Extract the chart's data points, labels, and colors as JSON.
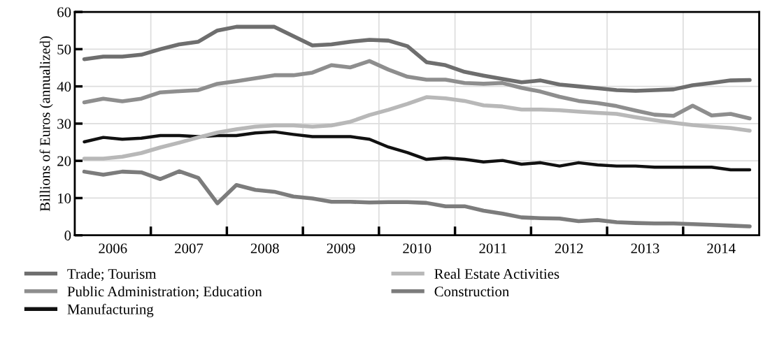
{
  "chart_data": {
    "type": "line",
    "ylabel": "Billions of Euros (annualized)",
    "x": [
      2006.125,
      2006.375,
      2006.625,
      2006.875,
      2007.125,
      2007.375,
      2007.625,
      2007.875,
      2008.125,
      2008.375,
      2008.625,
      2008.875,
      2009.125,
      2009.375,
      2009.625,
      2009.875,
      2010.125,
      2010.375,
      2010.625,
      2010.875,
      2011.125,
      2011.375,
      2011.625,
      2011.875,
      2012.125,
      2012.375,
      2012.625,
      2012.875,
      2013.125,
      2013.375,
      2013.625,
      2013.875,
      2014.125,
      2014.375,
      2014.625,
      2014.875
    ],
    "series": [
      {
        "name": "Trade; Tourism",
        "color": "#6e6e6e",
        "values": [
          47.3,
          48,
          48,
          48.5,
          50,
          51.3,
          52,
          55,
          56,
          56,
          56,
          53.5,
          51,
          51.3,
          52,
          52.5,
          52.3,
          50.8,
          46.5,
          45.7,
          43.9,
          42.9,
          42,
          41.1,
          41.6,
          40.5,
          40,
          39.5,
          39,
          38.8,
          39,
          39.2,
          40.3,
          40.9,
          41.6,
          41.7
        ]
      },
      {
        "name": "Public Administration; Education",
        "color": "#8e8e8e",
        "values": [
          35.7,
          36.7,
          36,
          36.7,
          38.4,
          38.7,
          39,
          40.7,
          41.4,
          42.2,
          43,
          43,
          43.7,
          45.7,
          45.1,
          46.8,
          44.5,
          42.6,
          41.8,
          41.8,
          40.9,
          40.7,
          40.9,
          39.6,
          38.6,
          37.2,
          36.1,
          35.5,
          34.7,
          33.5,
          32.4,
          32.1,
          34.8,
          32.2,
          32.6,
          31.4
        ]
      },
      {
        "name": "Manufacturing",
        "color": "#111111",
        "values": [
          25.1,
          26.3,
          25.8,
          26.1,
          26.8,
          26.8,
          26.5,
          26.8,
          26.8,
          27.5,
          27.8,
          27.1,
          26.5,
          26.5,
          26.5,
          25.8,
          23.7,
          22.2,
          20.4,
          20.8,
          20.4,
          19.7,
          20.1,
          19.1,
          19.5,
          18.6,
          19.5,
          18.9,
          18.6,
          18.6,
          18.3,
          18.3,
          18.3,
          18.3,
          17.6,
          17.6
        ]
      },
      {
        "name": "Real Estate Activities",
        "color": "#b8b8b8",
        "values": [
          20.6,
          20.6,
          21.1,
          22.1,
          23.6,
          24.9,
          26.3,
          27.6,
          28.5,
          29.2,
          29.5,
          29.5,
          29.2,
          29.5,
          30.5,
          32.3,
          33.7,
          35.3,
          37.1,
          36.8,
          36.1,
          34.9,
          34.6,
          33.8,
          33.8,
          33.6,
          33.2,
          32.9,
          32.6,
          31.7,
          30.9,
          30.2,
          29.6,
          29.2,
          28.8,
          28.1
        ]
      },
      {
        "name": "Construction",
        "color": "#7c7c7c",
        "values": [
          17.1,
          16.3,
          17.1,
          16.9,
          15.1,
          17.2,
          15.4,
          8.6,
          13.5,
          12.2,
          11.7,
          10.4,
          9.9,
          9,
          9,
          8.8,
          8.9,
          8.9,
          8.7,
          7.8,
          7.8,
          6.6,
          5.8,
          4.8,
          4.6,
          4.5,
          3.8,
          4.1,
          3.5,
          3.3,
          3.2,
          3.2,
          3,
          2.8,
          2.6,
          2.4
        ]
      }
    ],
    "xlim": [
      2006,
      2015
    ],
    "xticks": [
      {
        "value": 2006.5,
        "label": "2006"
      },
      {
        "value": 2007,
        "label": null
      },
      {
        "value": 2007.5,
        "label": "2007"
      },
      {
        "value": 2008,
        "label": null
      },
      {
        "value": 2008.5,
        "label": "2008"
      },
      {
        "value": 2009,
        "label": null
      },
      {
        "value": 2009.5,
        "label": "2009"
      },
      {
        "value": 2010,
        "label": null
      },
      {
        "value": 2010.5,
        "label": "2010"
      },
      {
        "value": 2011,
        "label": null
      },
      {
        "value": 2011.5,
        "label": "2011"
      },
      {
        "value": 2012,
        "label": null
      },
      {
        "value": 2012.5,
        "label": "2012"
      },
      {
        "value": 2013,
        "label": null
      },
      {
        "value": 2013.5,
        "label": "2013"
      },
      {
        "value": 2014,
        "label": null
      },
      {
        "value": 2014.5,
        "label": "2014"
      }
    ],
    "ylim": [
      0,
      60
    ],
    "yticks": [
      0,
      10,
      20,
      30,
      40,
      50,
      60
    ],
    "grid": true,
    "legend": "bottom",
    "marker": "none",
    "line_style": "solid"
  }
}
